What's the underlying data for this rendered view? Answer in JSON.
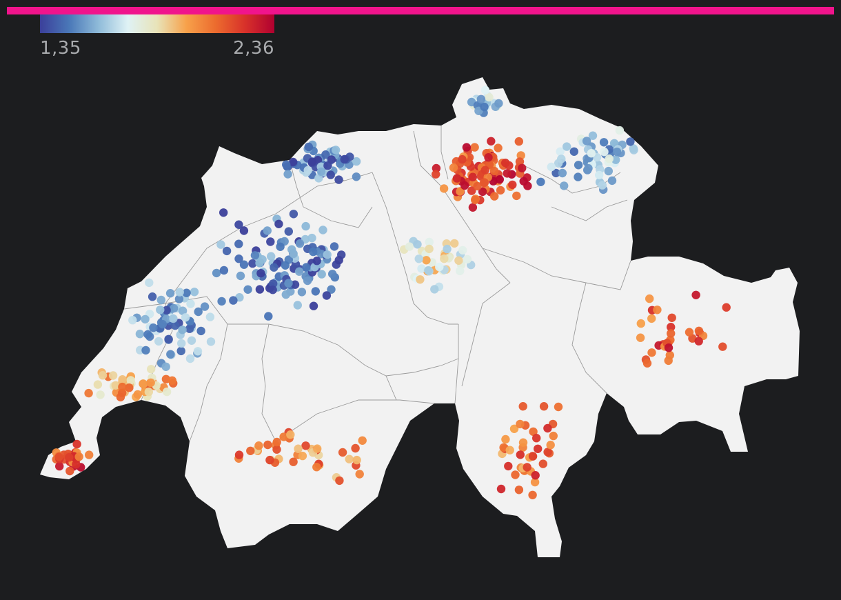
{
  "colors": {
    "background": "#1c1d1f",
    "accent_bar": "#f0148c",
    "land": "#f2f2f2",
    "borders": "#9a9a9a",
    "ramp": [
      "#3b3f9a",
      "#4a78b8",
      "#8fbbd9",
      "#dff2f5",
      "#e8e3b8",
      "#f7a14a",
      "#ec6b2e",
      "#d8312a",
      "#b00030"
    ]
  },
  "legend": {
    "min_label": "1,35",
    "max_label": "2,36",
    "min": 1.35,
    "max": 2.36
  },
  "map": {
    "name": "switzerland",
    "point_clusters": [
      {
        "region": "zurich-aargau",
        "level": 0.82,
        "count": 90
      },
      {
        "region": "basel-jura",
        "level": 0.15,
        "count": 60
      },
      {
        "region": "bern-solothurn",
        "level": 0.12,
        "count": 110
      },
      {
        "region": "fribourg-vaud-west",
        "level": 0.2,
        "count": 70
      },
      {
        "region": "geneva",
        "level": 0.8,
        "count": 30
      },
      {
        "region": "lake-geneva",
        "level": 0.62,
        "count": 45
      },
      {
        "region": "valais",
        "level": 0.7,
        "count": 40
      },
      {
        "region": "ticino",
        "level": 0.75,
        "count": 40
      },
      {
        "region": "graubuenden",
        "level": 0.78,
        "count": 30
      },
      {
        "region": "st-gallen-thurgau",
        "level": 0.25,
        "count": 60
      },
      {
        "region": "schaffhausen",
        "level": 0.3,
        "count": 20
      },
      {
        "region": "central-switzerland",
        "level": 0.45,
        "count": 40
      }
    ]
  }
}
